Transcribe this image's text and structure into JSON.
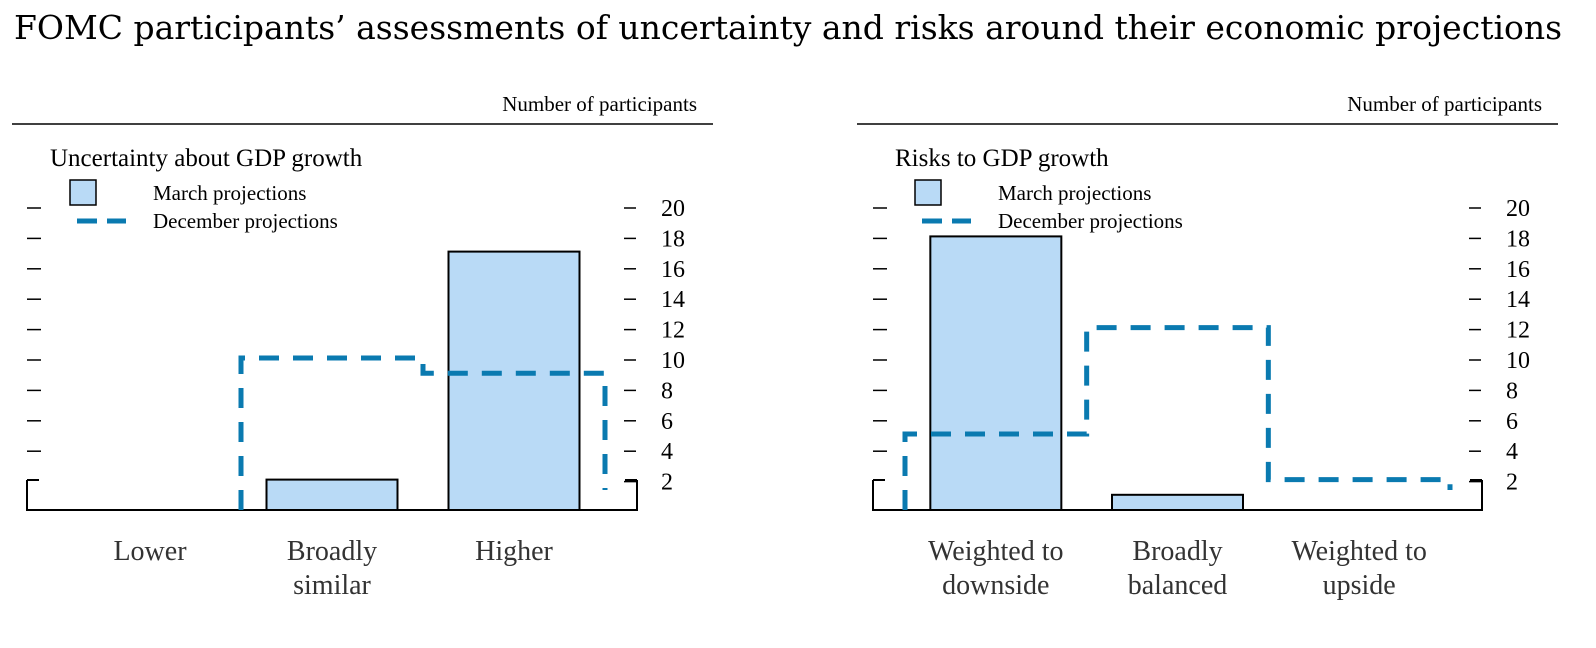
{
  "title": "FOMC participants’ assessments of uncertainty and risks around their economic projections",
  "chart_data": [
    {
      "type": "bar",
      "title": "Uncertainty about GDP growth",
      "ylabel": "Number of participants",
      "ylim": [
        0,
        20
      ],
      "yticks": [
        2,
        4,
        6,
        8,
        10,
        12,
        14,
        16,
        18,
        20
      ],
      "categories": [
        "Lower",
        "Broadly similar",
        "Higher"
      ],
      "category_lines": [
        [
          "Lower"
        ],
        [
          "Broadly",
          "similar"
        ],
        [
          "Higher"
        ]
      ],
      "series": [
        {
          "name": "March projections",
          "style": "bar",
          "values": [
            0,
            2,
            17
          ]
        },
        {
          "name": "December projections",
          "style": "dashed-outline",
          "values": [
            0,
            10,
            9
          ]
        }
      ],
      "colors": {
        "bar_fill": "#b9daf6",
        "bar_stroke": "#000000",
        "dashed": "#0a7ab0"
      },
      "legend_position": "top-left"
    },
    {
      "type": "bar",
      "title": "Risks to GDP growth",
      "ylabel": "Number of participants",
      "ylim": [
        0,
        20
      ],
      "yticks": [
        2,
        4,
        6,
        8,
        10,
        12,
        14,
        16,
        18,
        20
      ],
      "categories": [
        "Weighted to downside",
        "Broadly balanced",
        "Weighted to upside"
      ],
      "category_lines": [
        [
          "Weighted to",
          "downside"
        ],
        [
          "Broadly",
          "balanced"
        ],
        [
          "Weighted to",
          "upside"
        ]
      ],
      "series": [
        {
          "name": "March projections",
          "style": "bar",
          "values": [
            18,
            1,
            0
          ]
        },
        {
          "name": "December projections",
          "style": "dashed-outline",
          "values": [
            5,
            12,
            2
          ]
        }
      ],
      "colors": {
        "bar_fill": "#b9daf6",
        "bar_stroke": "#000000",
        "dashed": "#0a7ab0"
      },
      "legend_position": "top-left"
    }
  ]
}
